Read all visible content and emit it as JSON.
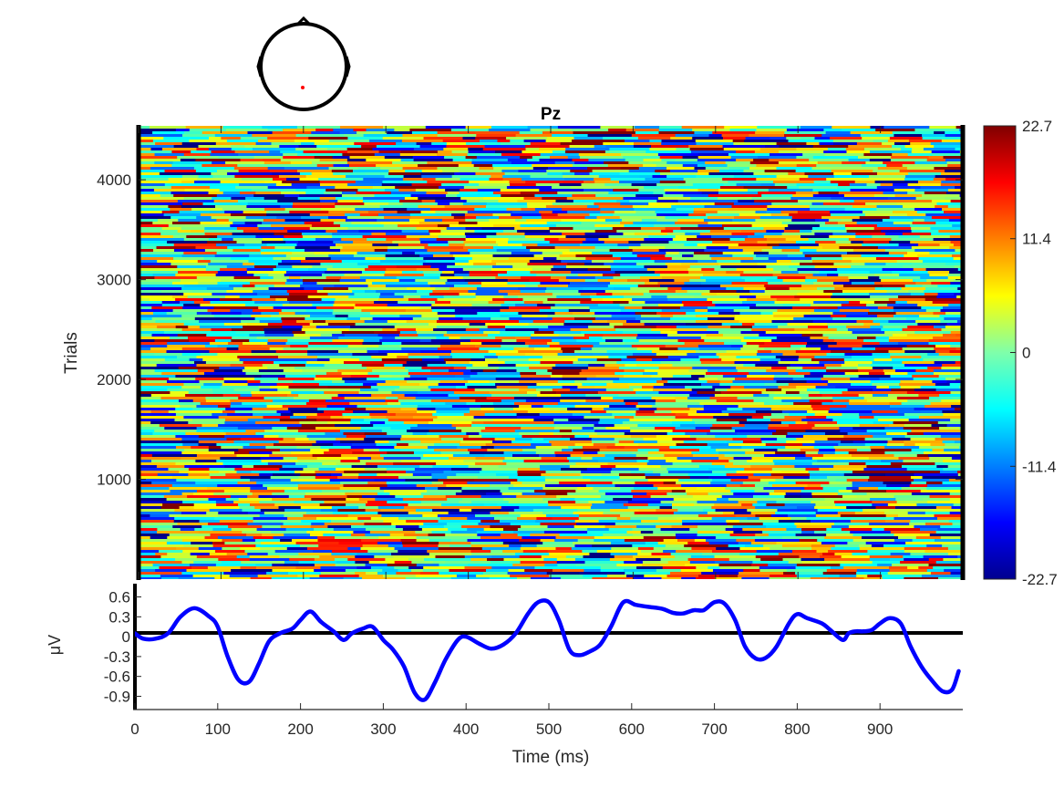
{
  "chart_data": [
    {
      "type": "heatmap",
      "title": "Pz",
      "ylabel": "Trials",
      "xlim": [
        0,
        1000
      ],
      "ylim": [
        1,
        4540
      ],
      "yticks": [
        1000,
        2000,
        3000,
        4000
      ],
      "xticks": [
        0,
        100,
        200,
        300,
        400,
        500,
        600,
        700,
        800,
        900
      ],
      "colormap": "jet",
      "clim": [
        -22.7,
        22.7
      ],
      "colorbar_ticks": [
        "22.7",
        "11.4",
        "0",
        "-11.4",
        "-22.7"
      ],
      "colorbar_tick_values": [
        22.7,
        11.4,
        0,
        -11.4,
        -22.7
      ]
    },
    {
      "type": "line",
      "xlabel": "Time (ms)",
      "ylabel": "μV",
      "xlim": [
        0,
        1000
      ],
      "ylim": [
        -1.1,
        0.8
      ],
      "yticks": [
        "0.6",
        "0.3",
        "0",
        "-0.3",
        "-0.6",
        "-0.9"
      ],
      "ytick_values": [
        0.6,
        0.3,
        0,
        -0.3,
        -0.6,
        -0.9
      ],
      "xticks": [
        "0",
        "100",
        "200",
        "300",
        "400",
        "500",
        "600",
        "700",
        "800",
        "900"
      ],
      "xtick_values": [
        0,
        100,
        200,
        300,
        400,
        500,
        600,
        700,
        800,
        900
      ],
      "series": [
        {
          "color": "#0000ff",
          "x": [
            0,
            10,
            25,
            40,
            55,
            72,
            90,
            100,
            112,
            125,
            138,
            150,
            162,
            175,
            190,
            200,
            212,
            225,
            240,
            252,
            262,
            275,
            287,
            300,
            312,
            325,
            338,
            350,
            362,
            375,
            390,
            400,
            415,
            430,
            445,
            460,
            475,
            487,
            500,
            512,
            525,
            537,
            550,
            562,
            575,
            590,
            605,
            620,
            637,
            650,
            662,
            675,
            687,
            700,
            712,
            725,
            737,
            750,
            762,
            775,
            790,
            800,
            812,
            830,
            840,
            855,
            862,
            870,
            880,
            890,
            900,
            912,
            925,
            937,
            950,
            962,
            975,
            987,
            995
          ],
          "y": [
            0.05,
            -0.03,
            -0.03,
            0.05,
            0.3,
            0.43,
            0.3,
            0.15,
            -0.3,
            -0.65,
            -0.68,
            -0.4,
            -0.07,
            0.05,
            0.12,
            0.25,
            0.38,
            0.22,
            0.08,
            -0.05,
            0.05,
            0.12,
            0.15,
            -0.05,
            -0.2,
            -0.45,
            -0.85,
            -0.95,
            -0.7,
            -0.35,
            -0.05,
            0,
            -0.1,
            -0.18,
            -0.12,
            0.05,
            0.35,
            0.52,
            0.52,
            0.25,
            -0.2,
            -0.28,
            -0.22,
            -0.12,
            0.15,
            0.52,
            0.48,
            0.45,
            0.42,
            0.36,
            0.35,
            0.4,
            0.4,
            0.52,
            0.5,
            0.25,
            -0.15,
            -0.33,
            -0.32,
            -0.15,
            0.2,
            0.34,
            0.28,
            0.2,
            0.1,
            -0.05,
            0.05,
            0.08,
            0.08,
            0.1,
            0.2,
            0.28,
            0.2,
            -0.15,
            -0.45,
            -0.65,
            -0.82,
            -0.8,
            -0.52
          ]
        }
      ]
    }
  ]
}
